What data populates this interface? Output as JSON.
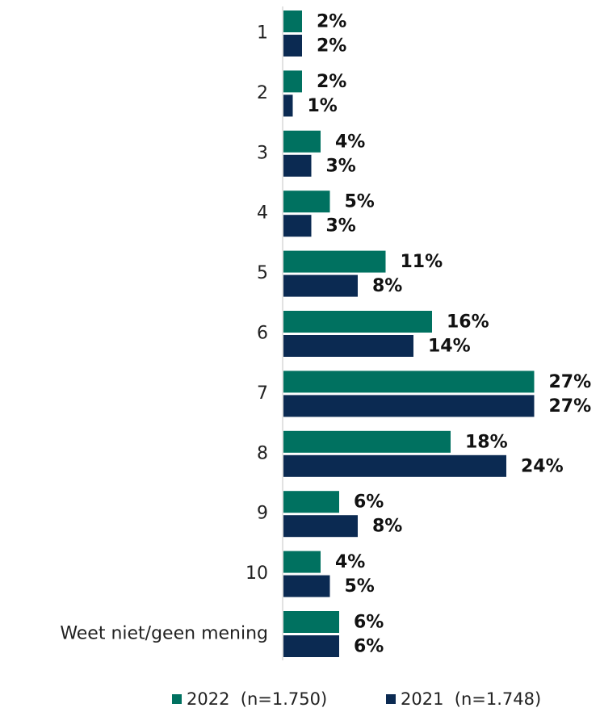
{
  "chart_data": {
    "type": "hbar",
    "categories": [
      "1",
      "2",
      "3",
      "4",
      "5",
      "6",
      "7",
      "8",
      "9",
      "10",
      "Weet niet/geen mening"
    ],
    "series": [
      {
        "name": "2022  (n=1.750)",
        "color": "#007160",
        "values": [
          2,
          2,
          4,
          5,
          11,
          16,
          27,
          18,
          6,
          4,
          6
        ],
        "value_labels": [
          "2%",
          "2%",
          "4%",
          "5%",
          "11%",
          "16%",
          "27%",
          "18%",
          "6%",
          "4%",
          "6%"
        ]
      },
      {
        "name": "2021  (n=1.748)",
        "color": "#0b2a52",
        "values": [
          2,
          1,
          3,
          3,
          8,
          14,
          27,
          24,
          8,
          5,
          6
        ],
        "value_labels": [
          "2%",
          "1%",
          "3%",
          "3%",
          "8%",
          "14%",
          "27%",
          "24%",
          "8%",
          "5%",
          "6%"
        ]
      }
    ],
    "legend": "bottom"
  }
}
